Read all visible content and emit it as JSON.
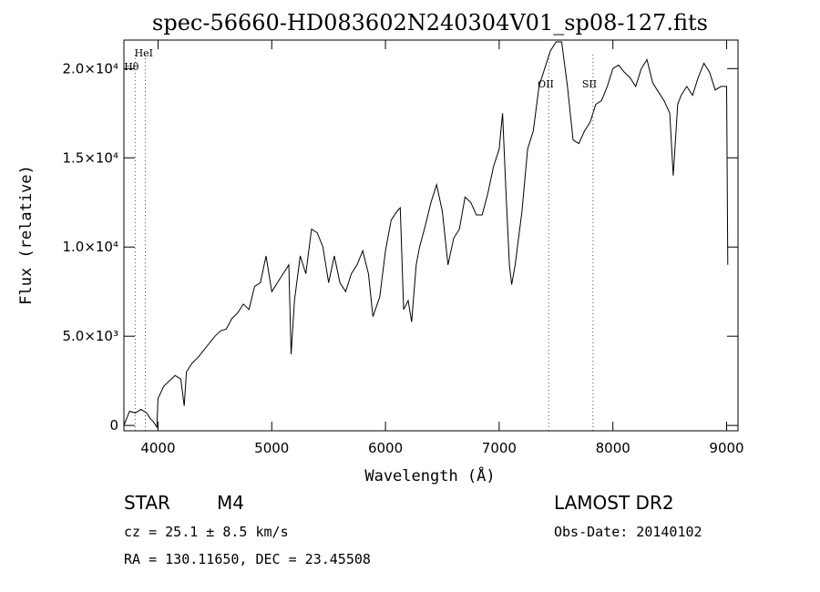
{
  "chart_data": {
    "type": "line",
    "title": "spec-56660-HD083602N240304V01_sp08-127.fits",
    "xlabel": "Wavelength (Å)",
    "ylabel": "Flux (relative)",
    "xlim": [
      3700,
      9100
    ],
    "ylim": [
      -300,
      21600
    ],
    "x_ticks": [
      4000,
      5000,
      6000,
      7000,
      8000,
      9000
    ],
    "x_tick_labels": [
      "4000",
      "5000",
      "6000",
      "7000",
      "8000",
      "9000"
    ],
    "y_ticks": [
      0,
      5000,
      10000,
      15000,
      20000
    ],
    "y_tick_labels": [
      "0",
      "5.0×10³",
      "1.0×10⁴",
      "1.5×10⁴",
      "2.0×10⁴"
    ],
    "spectral_lines": [
      {
        "label": "HeI",
        "x": 3889
      },
      {
        "label": "Hθ",
        "x": 3798
      },
      {
        "label": "OII",
        "x": 7435
      },
      {
        "label": "SII",
        "x": 7825
      }
    ],
    "series": [
      {
        "x": [
          3700,
          3750,
          3800,
          3850,
          3900,
          3930,
          3960,
          3990,
          4000,
          4050,
          4100,
          4150,
          4200,
          4230,
          4250,
          4300,
          4350,
          4400,
          4450,
          4500,
          4550,
          4600,
          4650,
          4700,
          4750,
          4800,
          4850,
          4900,
          4950,
          5000,
          5050,
          5100,
          5150,
          5170,
          5200,
          5250,
          5300,
          5350,
          5400,
          5450,
          5500,
          5550,
          5600,
          5650,
          5700,
          5750,
          5800,
          5850,
          5890,
          5950,
          6000,
          6050,
          6100,
          6130,
          6160,
          6200,
          6230,
          6270,
          6300,
          6350,
          6400,
          6450,
          6500,
          6550,
          6600,
          6650,
          6700,
          6750,
          6800,
          6850,
          6900,
          6950,
          7000,
          7030,
          7060,
          7090,
          7110,
          7140,
          7200,
          7250,
          7300,
          7350,
          7400,
          7450,
          7500,
          7550,
          7600,
          7650,
          7700,
          7750,
          7800,
          7850,
          7900,
          7950,
          8000,
          8050,
          8100,
          8150,
          8200,
          8250,
          8300,
          8350,
          8400,
          8450,
          8500,
          8530,
          8550,
          8570,
          8600,
          8650,
          8700,
          8750,
          8800,
          8850,
          8900,
          8950,
          9000,
          9010
        ],
        "values": [
          0,
          800,
          700,
          900,
          700,
          400,
          200,
          -100,
          1500,
          2200,
          2500,
          2800,
          2600,
          1100,
          3000,
          3500,
          3800,
          4200,
          4600,
          5000,
          5300,
          5400,
          6000,
          6300,
          6800,
          6500,
          7800,
          8000,
          9500,
          7500,
          8000,
          8500,
          9000,
          4000,
          7000,
          9500,
          8500,
          11000,
          10800,
          10000,
          8000,
          9500,
          8000,
          7500,
          8500,
          9000,
          9800,
          8500,
          6100,
          7200,
          9800,
          11500,
          12000,
          12200,
          6500,
          7000,
          5800,
          9000,
          10000,
          11200,
          12500,
          13500,
          12000,
          9000,
          10500,
          11000,
          12800,
          12500,
          11800,
          11800,
          13000,
          14500,
          15500,
          17500,
          13000,
          9000,
          7900,
          9000,
          12000,
          15500,
          16500,
          19000,
          20000,
          21000,
          21500,
          21500,
          19000,
          16000,
          15800,
          16500,
          17000,
          18000,
          18200,
          19000,
          20000,
          20200,
          19800,
          19500,
          19000,
          20000,
          20500,
          19200,
          18700,
          18200,
          17500,
          14000,
          16000,
          18000,
          18500,
          19000,
          18500,
          19500,
          20300,
          19800,
          18800,
          19000,
          19000,
          9000
        ]
      }
    ],
    "grid": false
  },
  "footer": {
    "object_type": "STAR",
    "subclass": "M4",
    "cz": "cz = 25.1 ± 8.5 km/s",
    "coords": "RA = 130.11650, DEC =  23.45508",
    "survey": "LAMOST DR2",
    "obs_date": "Obs-Date: 20140102"
  }
}
